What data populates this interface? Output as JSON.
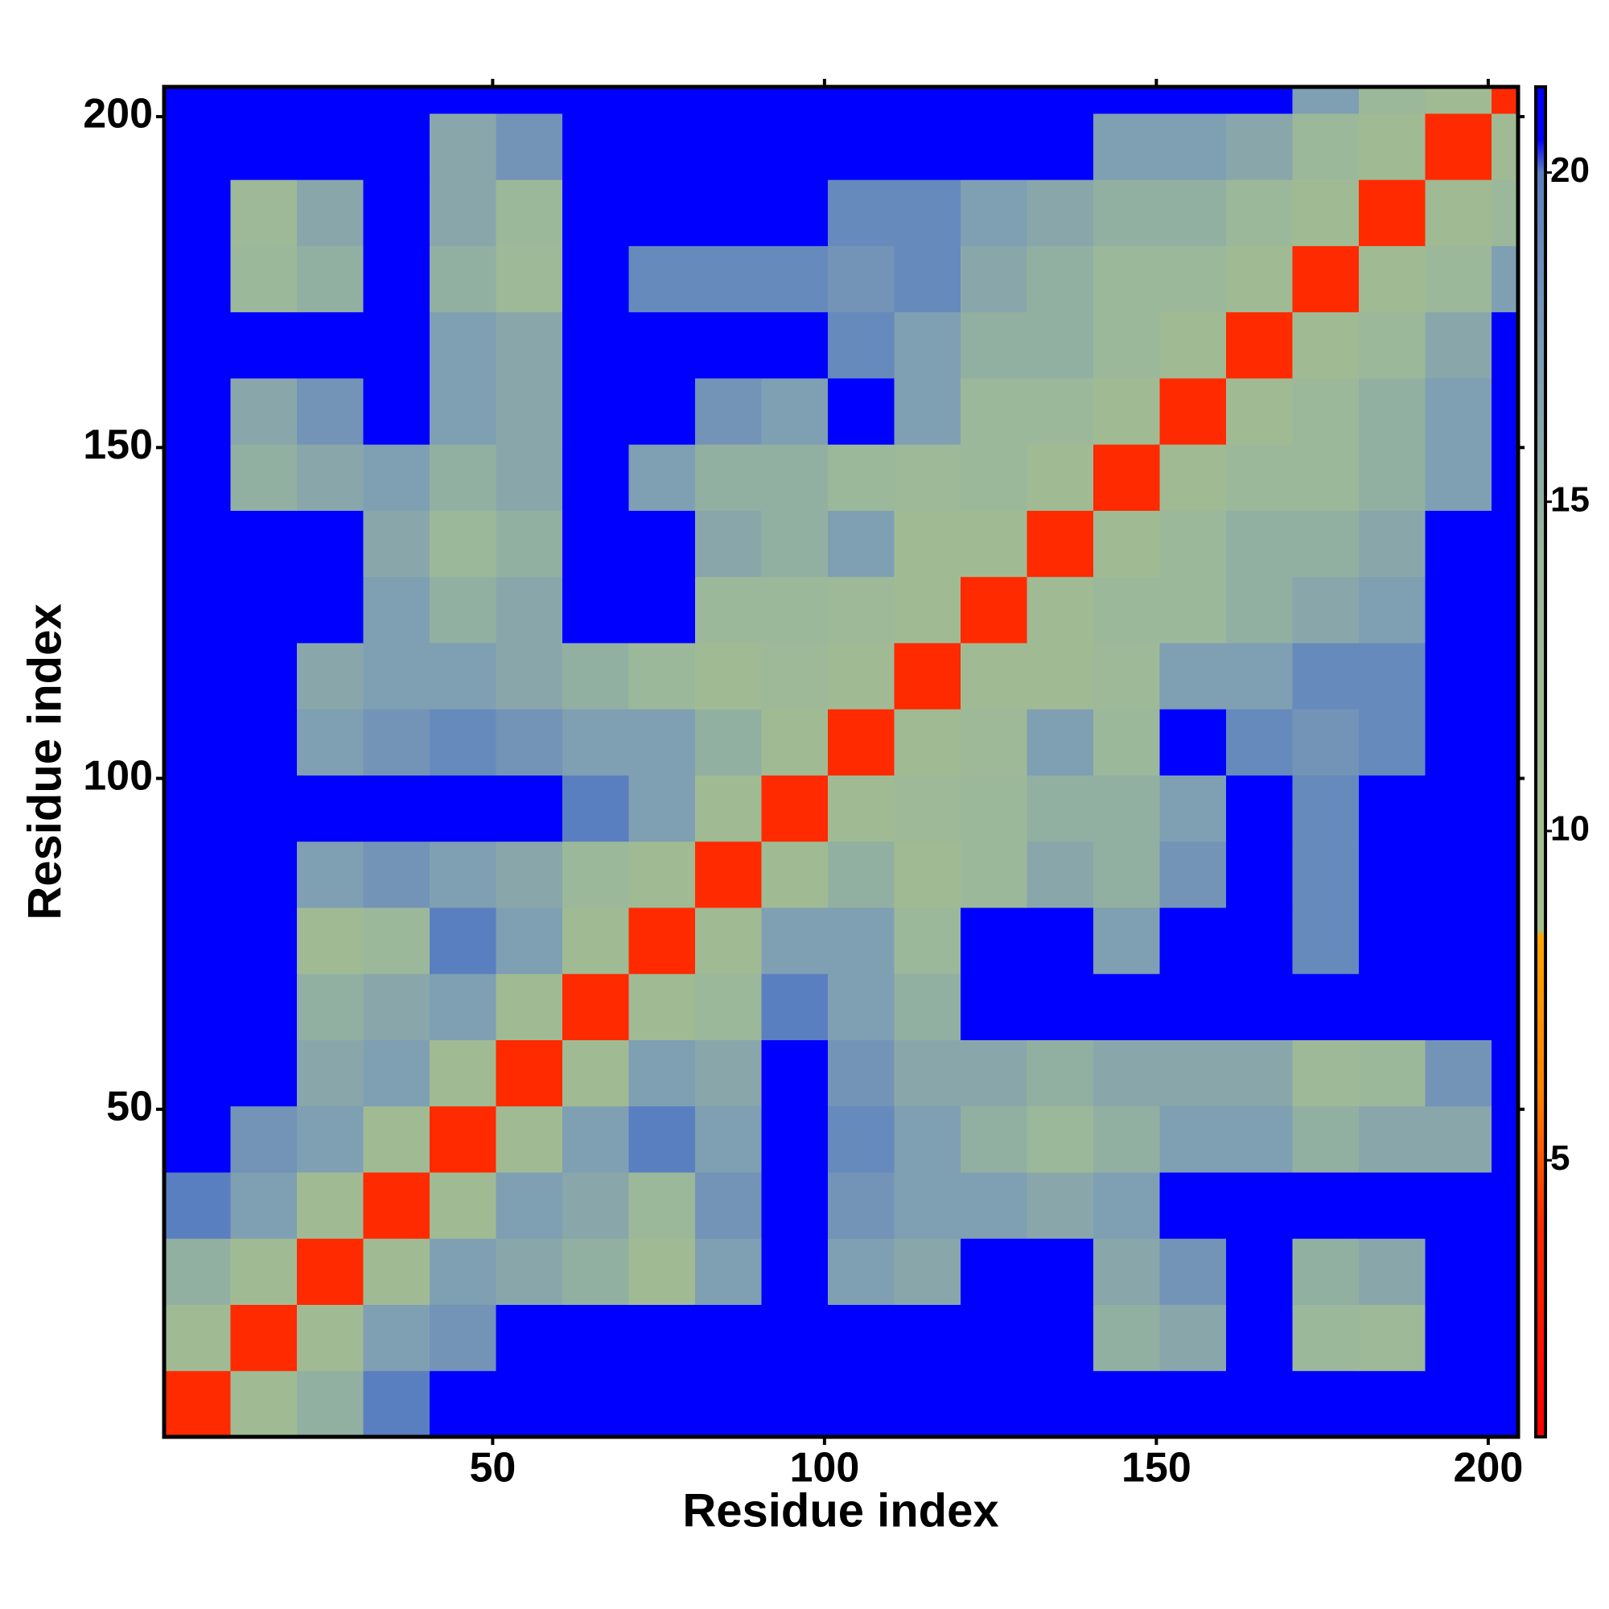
{
  "chart_data": {
    "type": "heatmap",
    "xlabel": "Residue index",
    "ylabel": "Residue index",
    "xbins": [
      0.5,
      10.5,
      20.5,
      30.5,
      40.5,
      50.5,
      60.5,
      70.5,
      80.5,
      90.5,
      100.5,
      110.5,
      120.5,
      130.5,
      140.5,
      150.5,
      160.5,
      170.5,
      180.5,
      190.5,
      200.5,
      204.5
    ],
    "ybins": [
      0.5,
      10.5,
      20.5,
      30.5,
      40.5,
      50.5,
      60.5,
      70.5,
      80.5,
      90.5,
      100.5,
      110.5,
      120.5,
      130.5,
      140.5,
      150.5,
      160.5,
      170.5,
      180.5,
      190.5,
      200.5,
      204.5
    ],
    "values": [
      [
        4,
        12,
        15,
        20,
        21,
        21,
        21,
        21,
        21,
        21,
        21,
        21,
        21,
        21,
        21,
        21,
        21,
        21,
        21,
        21,
        21
      ],
      [
        12,
        4,
        12,
        17,
        18,
        21,
        21,
        21,
        21,
        21,
        21,
        21,
        21,
        21,
        15,
        16,
        21,
        14,
        13,
        21,
        21
      ],
      [
        15,
        12,
        4,
        12,
        17,
        16,
        15,
        12,
        17,
        21,
        17,
        16,
        21,
        21,
        16,
        18,
        21,
        15,
        16,
        21,
        21
      ],
      [
        20,
        17,
        12,
        4,
        12,
        17,
        16,
        14,
        18,
        21,
        18,
        17,
        17,
        16,
        17,
        21,
        21,
        21,
        21,
        21,
        21
      ],
      [
        21,
        18,
        17,
        12,
        4,
        12,
        17,
        20,
        17,
        21,
        19,
        17,
        15,
        14,
        15,
        17,
        17,
        15,
        16,
        16,
        21
      ],
      [
        21,
        21,
        16,
        17,
        12,
        4,
        12,
        17,
        16,
        21,
        18,
        16,
        16,
        15,
        16,
        16,
        16,
        13,
        14,
        18,
        21
      ],
      [
        21,
        21,
        15,
        16,
        17,
        12,
        4,
        12,
        14,
        20,
        17,
        15,
        21,
        21,
        21,
        21,
        21,
        21,
        21,
        21,
        21
      ],
      [
        21,
        21,
        12,
        14,
        20,
        17,
        12,
        4,
        12,
        17,
        17,
        14,
        21,
        21,
        17,
        21,
        21,
        19,
        21,
        21,
        21
      ],
      [
        21,
        21,
        17,
        18,
        17,
        16,
        14,
        12,
        4,
        12,
        15,
        12,
        14,
        16,
        15,
        18,
        21,
        19,
        21,
        21,
        21
      ],
      [
        21,
        21,
        21,
        21,
        21,
        21,
        20,
        17,
        12,
        4,
        12,
        13,
        14,
        15,
        15,
        17,
        21,
        19,
        21,
        21,
        21
      ],
      [
        21,
        21,
        17,
        18,
        19,
        18,
        17,
        17,
        15,
        12,
        4,
        12,
        13,
        17,
        14,
        21,
        19,
        18,
        19,
        21,
        21
      ],
      [
        21,
        21,
        16,
        17,
        17,
        16,
        15,
        14,
        12,
        13,
        12,
        4,
        12,
        12,
        13,
        17,
        17,
        19,
        19,
        21,
        21
      ],
      [
        21,
        21,
        21,
        17,
        15,
        16,
        21,
        21,
        14,
        14,
        13,
        12,
        4,
        12,
        14,
        14,
        15,
        16,
        17,
        21,
        21
      ],
      [
        21,
        21,
        21,
        16,
        14,
        15,
        21,
        21,
        16,
        15,
        17,
        12,
        12,
        4,
        12,
        14,
        15,
        15,
        16,
        21,
        21
      ],
      [
        21,
        15,
        16,
        17,
        15,
        16,
        21,
        17,
        15,
        15,
        14,
        13,
        14,
        12,
        4,
        12,
        14,
        14,
        15,
        17,
        21
      ],
      [
        21,
        16,
        18,
        21,
        17,
        16,
        21,
        21,
        18,
        17,
        21,
        17,
        14,
        14,
        12,
        4,
        12,
        14,
        15,
        17,
        21
      ],
      [
        21,
        21,
        21,
        21,
        17,
        16,
        21,
        21,
        21,
        21,
        19,
        17,
        15,
        15,
        14,
        12,
        4,
        12,
        14,
        16,
        21
      ],
      [
        21,
        14,
        15,
        21,
        15,
        13,
        21,
        19,
        19,
        19,
        18,
        19,
        16,
        15,
        14,
        14,
        12,
        4,
        12,
        14,
        17
      ],
      [
        21,
        13,
        16,
        21,
        16,
        14,
        21,
        21,
        21,
        21,
        19,
        19,
        17,
        16,
        15,
        15,
        14,
        12,
        4,
        12,
        14
      ],
      [
        21,
        21,
        21,
        21,
        16,
        18,
        21,
        21,
        21,
        21,
        21,
        21,
        21,
        21,
        17,
        17,
        16,
        14,
        12,
        4,
        12
      ],
      [
        21,
        21,
        21,
        21,
        21,
        21,
        21,
        21,
        21,
        21,
        21,
        21,
        21,
        21,
        21,
        21,
        21,
        17,
        14,
        12,
        4
      ]
    ],
    "xlim": [
      0.5,
      204.5
    ],
    "ylim": [
      0.5,
      204.5
    ],
    "xticks": [
      50,
      100,
      150,
      200
    ],
    "yticks": [
      50,
      100,
      150,
      200
    ],
    "zlim": [
      0.8,
      21.3
    ],
    "zticks": [
      5,
      10,
      15,
      20
    ],
    "colorscale": [
      [
        0.8,
        "#ff0000"
      ],
      [
        4,
        "#ff2a00"
      ],
      [
        6,
        "#ff8000"
      ],
      [
        8.4,
        "#ffa500"
      ],
      [
        8.5,
        "#a8bf8a"
      ],
      [
        14,
        "#9cb89a"
      ],
      [
        17,
        "#7f9fb3"
      ],
      [
        20,
        "#5a7fc0"
      ],
      [
        20.5,
        "#0000ff"
      ],
      [
        21.3,
        "#0000ff"
      ]
    ]
  }
}
